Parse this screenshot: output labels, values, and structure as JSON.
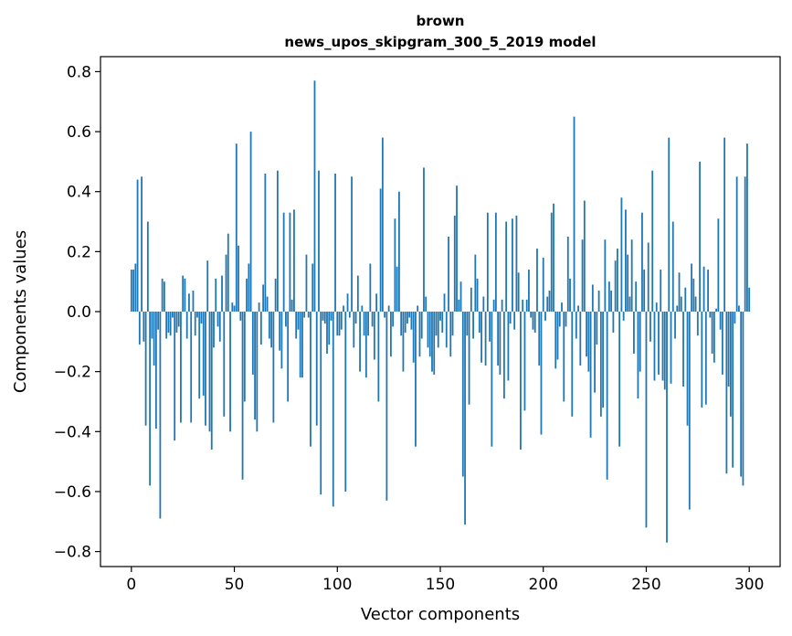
{
  "chart_data": {
    "type": "bar",
    "title_line1": "brown",
    "title_line2": "news_upos_skipgram_300_5_2019 model",
    "xlabel": "Vector components",
    "ylabel": "Components values",
    "xlim": [
      -15,
      315
    ],
    "ylim": [
      -0.85,
      0.85
    ],
    "x_ticks": [
      0,
      50,
      100,
      150,
      200,
      250,
      300
    ],
    "x_tick_labels": [
      "0",
      "50",
      "100",
      "150",
      "200",
      "250",
      "300"
    ],
    "y_ticks": [
      -0.8,
      -0.6,
      -0.4,
      -0.2,
      0.0,
      0.2,
      0.4,
      0.6,
      0.8
    ],
    "y_tick_labels": [
      "−0.8",
      "−0.6",
      "−0.4",
      "−0.2",
      "0.0",
      "0.2",
      "0.4",
      "0.6",
      "0.8"
    ],
    "bar_color": "#1f77b4",
    "grid": false,
    "values": [
      0.14,
      0.14,
      0.16,
      0.44,
      -0.11,
      0.45,
      -0.1,
      -0.38,
      0.3,
      -0.58,
      -0.09,
      -0.18,
      -0.39,
      -0.06,
      -0.69,
      0.11,
      0.1,
      -0.09,
      -0.07,
      -0.08,
      -0.02,
      -0.43,
      -0.07,
      -0.05,
      -0.37,
      0.12,
      0.11,
      -0.09,
      0.06,
      -0.37,
      0.07,
      -0.08,
      -0.02,
      -0.29,
      -0.04,
      -0.28,
      -0.38,
      0.17,
      -0.4,
      -0.46,
      -0.12,
      0.11,
      -0.05,
      -0.1,
      0.12,
      -0.35,
      0.19,
      0.26,
      -0.4,
      0.03,
      0.02,
      0.56,
      0.22,
      -0.03,
      -0.56,
      -0.3,
      0.11,
      0.16,
      0.6,
      -0.21,
      -0.36,
      -0.4,
      0.03,
      -0.11,
      0.09,
      0.46,
      0.05,
      -0.09,
      -0.12,
      -0.37,
      0.11,
      0.47,
      -0.13,
      -0.19,
      0.33,
      -0.05,
      -0.3,
      0.33,
      0.04,
      0.34,
      -0.09,
      -0.06,
      -0.22,
      -0.22,
      -0.02,
      0.19,
      -0.02,
      -0.45,
      0.16,
      0.77,
      -0.38,
      0.47,
      -0.61,
      -0.03,
      -0.04,
      -0.14,
      -0.11,
      -0.03,
      -0.65,
      0.46,
      -0.08,
      -0.08,
      -0.06,
      0.02,
      -0.6,
      0.06,
      -0.02,
      0.45,
      -0.12,
      -0.04,
      0.12,
      -0.2,
      0.02,
      -0.08,
      -0.22,
      -0.08,
      0.16,
      -0.05,
      -0.16,
      0.06,
      -0.3,
      0.41,
      0.58,
      -0.02,
      -0.63,
      0.02,
      -0.15,
      -0.05,
      0.31,
      0.15,
      0.4,
      -0.08,
      -0.2,
      -0.07,
      -0.04,
      -0.02,
      -0.06,
      -0.17,
      -0.45,
      0.02,
      -0.15,
      -0.09,
      0.48,
      0.05,
      -0.12,
      -0.15,
      -0.2,
      -0.21,
      -0.08,
      -0.12,
      -0.03,
      -0.07,
      0.06,
      -0.12,
      0.25,
      -0.15,
      -0.08,
      0.32,
      0.42,
      0.04,
      0.1,
      -0.55,
      -0.71,
      -0.08,
      -0.31,
      0.08,
      -0.09,
      0.19,
      0.11,
      -0.07,
      -0.17,
      0.05,
      -0.18,
      0.33,
      -0.1,
      -0.45,
      0.04,
      0.33,
      -0.18,
      -0.21,
      0.04,
      -0.29,
      0.3,
      -0.23,
      -0.04,
      0.31,
      -0.06,
      0.32,
      0.13,
      -0.46,
      0.04,
      -0.33,
      0.04,
      0.14,
      -0.02,
      -0.06,
      -0.07,
      0.21,
      -0.18,
      -0.41,
      0.18,
      -0.03,
      0.05,
      0.07,
      0.33,
      0.36,
      -0.19,
      -0.16,
      -0.05,
      0.03,
      -0.3,
      -0.05,
      0.25,
      0.11,
      -0.35,
      0.65,
      -0.09,
      0.02,
      -0.18,
      0.24,
      0.37,
      -0.15,
      -0.2,
      -0.42,
      0.09,
      -0.27,
      -0.11,
      0.07,
      -0.35,
      -0.32,
      0.24,
      -0.56,
      0.1,
      0.07,
      -0.07,
      0.17,
      0.21,
      -0.45,
      0.38,
      -0.03,
      0.34,
      0.19,
      0.05,
      0.24,
      -0.14,
      0.1,
      -0.29,
      -0.2,
      0.33,
      0.14,
      -0.72,
      0.23,
      -0.1,
      0.47,
      -0.23,
      0.03,
      -0.21,
      0.14,
      -0.23,
      -0.26,
      -0.77,
      0.58,
      -0.24,
      0.3,
      -0.09,
      0.02,
      0.13,
      0.05,
      -0.25,
      0.08,
      -0.38,
      -0.66,
      0.16,
      0.11,
      0.05,
      -0.08,
      0.5,
      -0.32,
      0.15,
      -0.31,
      0.14,
      -0.02,
      -0.14,
      -0.17,
      0.01,
      0.31,
      -0.06,
      -0.21,
      0.58,
      -0.54,
      -0.25,
      -0.35,
      -0.52,
      -0.04,
      0.45,
      0.02,
      -0.55,
      -0.58,
      0.45,
      0.56,
      0.08
    ]
  }
}
